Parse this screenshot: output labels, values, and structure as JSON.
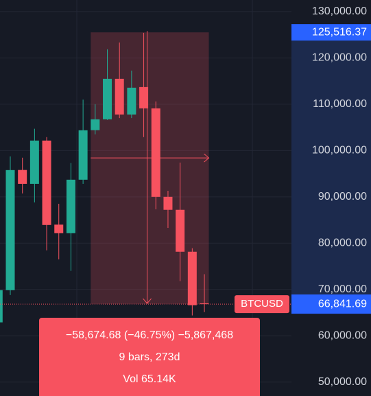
{
  "chart_data": {
    "type": "candlestick",
    "open": [
      62900,
      69850,
      95800,
      92800,
      102150,
      84000,
      82150,
      93700,
      104400,
      106740,
      115480,
      107780,
      113700,
      109100,
      90000,
      87200,
      78150,
      67000
    ],
    "high": [
      70500,
      98740,
      98450,
      104700,
      102900,
      88500,
      97300,
      111000,
      110000,
      121850,
      123330,
      117260,
      125400,
      110600,
      91300,
      97400,
      78900,
      73300
    ],
    "low": [
      60500,
      68800,
      90740,
      88800,
      78450,
      76500,
      74000,
      92800,
      103500,
      106600,
      107000,
      107000,
      102900,
      87300,
      83300,
      71800,
      64400,
      65100
    ],
    "close": [
      69850,
      95778,
      92800,
      102150,
      83926,
      82150,
      93700,
      104370,
      106740,
      115480,
      107780,
      113560,
      109100,
      90000,
      87200,
      78150,
      66600,
      66841.69
    ],
    "up_color": "#22ab94",
    "down_color": "#f7525f",
    "ylim": [
      47000,
      132500
    ],
    "yticks": [
      {
        "value": 130000,
        "label": "130,000.00"
      },
      {
        "value": 120000,
        "label": "120,000.00"
      },
      {
        "value": 110000,
        "label": "110,000.00"
      },
      {
        "value": 100000,
        "label": "100,000.00"
      },
      {
        "value": 90000,
        "label": "90,000.00"
      },
      {
        "value": 80000,
        "label": "80,000.00"
      },
      {
        "value": 70000,
        "label": "70,000.00"
      },
      {
        "value": 60000,
        "label": "60,000.00"
      },
      {
        "value": 50000,
        "label": "50,000.00"
      }
    ],
    "grid": true,
    "symbol": "BTCUSD",
    "last_price": {
      "value": 66841.69,
      "label": "66,841.69"
    },
    "range_high": {
      "value": 125516.37,
      "label": "125,516.37"
    },
    "measure": {
      "lines": [
        "−58,674.68 (−46.75%) −5,867,468",
        "9 bars, 273d",
        "Vol 65.14K"
      ]
    }
  }
}
